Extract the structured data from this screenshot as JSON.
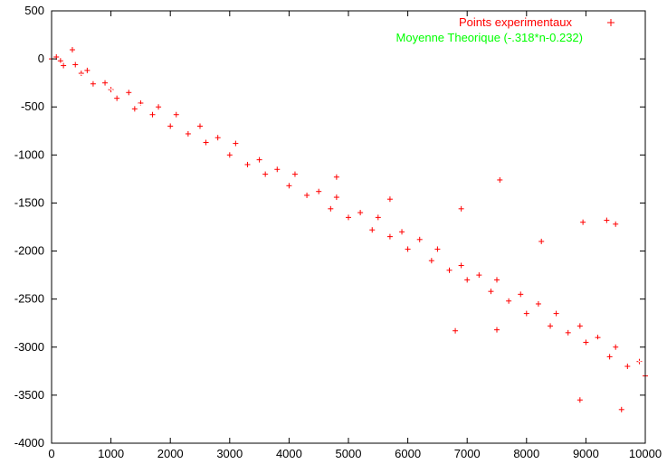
{
  "chart_data": {
    "type": "scatter",
    "title": "",
    "xlabel": "",
    "ylabel": "",
    "xlim": [
      0,
      10000
    ],
    "ylim": [
      -4000,
      500
    ],
    "x_ticks": [
      0,
      1000,
      2000,
      3000,
      4000,
      5000,
      6000,
      7000,
      8000,
      9000,
      10000
    ],
    "y_ticks": [
      500,
      0,
      -500,
      -1000,
      -1500,
      -2000,
      -2500,
      -3000,
      -3500,
      -4000
    ],
    "grid": false,
    "legend_position": "top-right",
    "series": [
      {
        "name": "Points experimentaux",
        "kind": "scatter",
        "marker": "+",
        "color": "#ff0000",
        "points": [
          [
            0,
            0
          ],
          [
            80,
            20
          ],
          [
            150,
            -20
          ],
          [
            200,
            -70
          ],
          [
            350,
            95
          ],
          [
            400,
            -60
          ],
          [
            500,
            -150
          ],
          [
            600,
            -120
          ],
          [
            700,
            -260
          ],
          [
            900,
            -250
          ],
          [
            1000,
            -320
          ],
          [
            1100,
            -410
          ],
          [
            1300,
            -350
          ],
          [
            1400,
            -520
          ],
          [
            1500,
            -460
          ],
          [
            1700,
            -580
          ],
          [
            1800,
            -500
          ],
          [
            2000,
            -700
          ],
          [
            2100,
            -580
          ],
          [
            2300,
            -780
          ],
          [
            2500,
            -700
          ],
          [
            2600,
            -870
          ],
          [
            2800,
            -820
          ],
          [
            3000,
            -1000
          ],
          [
            3100,
            -880
          ],
          [
            3300,
            -1100
          ],
          [
            3500,
            -1050
          ],
          [
            3600,
            -1200
          ],
          [
            3800,
            -1150
          ],
          [
            4000,
            -1320
          ],
          [
            4100,
            -1200
          ],
          [
            4300,
            -1420
          ],
          [
            4500,
            -1380
          ],
          [
            4700,
            -1560
          ],
          [
            4800,
            -1440
          ],
          [
            5000,
            -1650
          ],
          [
            5200,
            -1600
          ],
          [
            5400,
            -1780
          ],
          [
            5500,
            -1650
          ],
          [
            5700,
            -1850
          ],
          [
            5900,
            -1800
          ],
          [
            6000,
            -1980
          ],
          [
            6200,
            -1880
          ],
          [
            6400,
            -2100
          ],
          [
            6500,
            -1980
          ],
          [
            6700,
            -2200
          ],
          [
            6900,
            -2150
          ],
          [
            7000,
            -2300
          ],
          [
            7200,
            -2250
          ],
          [
            7400,
            -2420
          ],
          [
            7500,
            -2300
          ],
          [
            7700,
            -2520
          ],
          [
            7900,
            -2450
          ],
          [
            8000,
            -2650
          ],
          [
            8200,
            -2550
          ],
          [
            8400,
            -2780
          ],
          [
            8500,
            -2650
          ],
          [
            8700,
            -2850
          ],
          [
            8900,
            -2780
          ],
          [
            9000,
            -2950
          ],
          [
            9200,
            -2900
          ],
          [
            9400,
            -3100
          ],
          [
            9500,
            -3000
          ],
          [
            9700,
            -3200
          ],
          [
            9900,
            -3150
          ],
          [
            10000,
            -3300
          ],
          [
            6800,
            -2830
          ],
          [
            7500,
            -2820
          ],
          [
            8900,
            -3550
          ],
          [
            9600,
            -3650
          ],
          [
            7550,
            -1260
          ],
          [
            6900,
            -1560
          ],
          [
            5700,
            -1460
          ],
          [
            4800,
            -1230
          ],
          [
            8250,
            -1900
          ],
          [
            8950,
            -1700
          ],
          [
            9350,
            -1680
          ],
          [
            9500,
            -1720
          ]
        ]
      },
      {
        "name": "Moyenne Theorique (-.318*n-0.232)",
        "kind": "line",
        "color": "#00ff00",
        "slope": -0.318,
        "intercept": -0.232
      }
    ]
  },
  "legend": {
    "items": [
      {
        "label": "Points experimentaux",
        "color": "#ff0000",
        "marker": "+"
      },
      {
        "label": "Moyenne Theorique (-.318*n-0.232)",
        "color": "#00ff00",
        "marker": ""
      }
    ]
  }
}
